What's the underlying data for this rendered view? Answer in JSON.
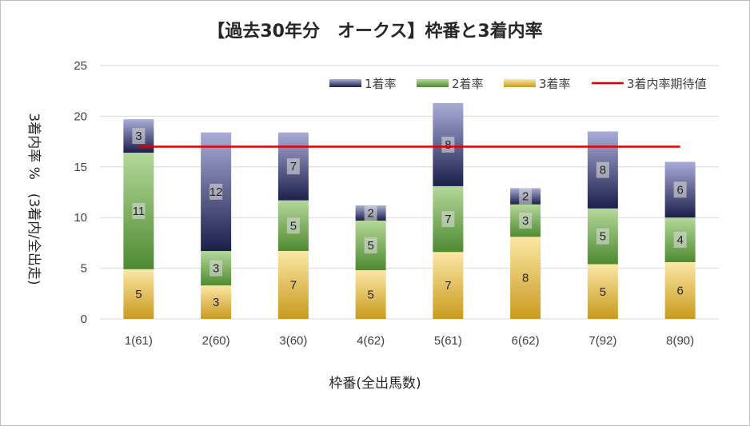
{
  "chart_data": {
    "type": "bar",
    "stacked": true,
    "title": "【過去30年分　オークス】枠番と3着内率",
    "xlabel": "枠番(全出馬数)",
    "ylabel": "3着内率 %　(3着内/全出走)",
    "ylim": [
      0,
      25
    ],
    "yticks": [
      "0",
      "5",
      "10",
      "15",
      "20",
      "25"
    ],
    "grid": true,
    "legend_position": "top-right",
    "categories": [
      "1(61)",
      "2(60)",
      "3(60)",
      "4(62)",
      "5(61)",
      "6(62)",
      "7(92)",
      "8(90)"
    ],
    "series": [
      {
        "name": "3着率",
        "color": "#d4a82a",
        "values": [
          4.9,
          3.3,
          6.7,
          4.8,
          6.6,
          8.1,
          5.4,
          5.6
        ],
        "labels": [
          "5",
          "3",
          "7",
          "5",
          "7",
          "8",
          "5",
          "6"
        ]
      },
      {
        "name": "2着率",
        "color": "#6aa045",
        "values": [
          11.5,
          3.4,
          5.0,
          4.9,
          6.5,
          3.2,
          5.5,
          4.4
        ],
        "labels": [
          "11",
          "3",
          "5",
          "5",
          "7",
          "3",
          "5",
          "4"
        ]
      },
      {
        "name": "1着率",
        "color": "#2e3a80",
        "values": [
          3.3,
          11.7,
          6.7,
          1.5,
          8.2,
          1.6,
          7.6,
          5.5
        ],
        "labels": [
          "3",
          "12",
          "7",
          "2",
          "8",
          "2",
          "8",
          "6"
        ]
      }
    ],
    "reference_line": {
      "name": "3着内率期待値",
      "color": "#e00000",
      "value": 17
    }
  }
}
